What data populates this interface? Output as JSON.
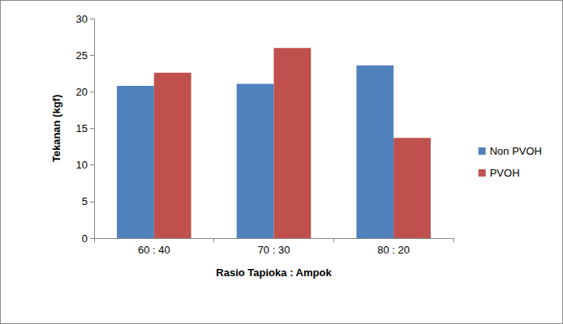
{
  "chart_data": {
    "type": "bar",
    "categories": [
      "60 : 40",
      "70 : 30",
      "80 : 20"
    ],
    "series": [
      {
        "name": "Non PVOH",
        "color": "#4f81bd",
        "values": [
          20.8,
          21.1,
          23.6
        ]
      },
      {
        "name": "PVOH",
        "color": "#c0504d",
        "values": [
          22.6,
          26.0,
          13.7
        ]
      }
    ],
    "xlabel": "Rasio Tapioka : Ampok",
    "ylabel": "Tekanan (kgf)",
    "ylim": [
      0,
      30
    ],
    "yticks": [
      0,
      5,
      10,
      15,
      20,
      25,
      30
    ],
    "grid": false,
    "legend": "right"
  }
}
